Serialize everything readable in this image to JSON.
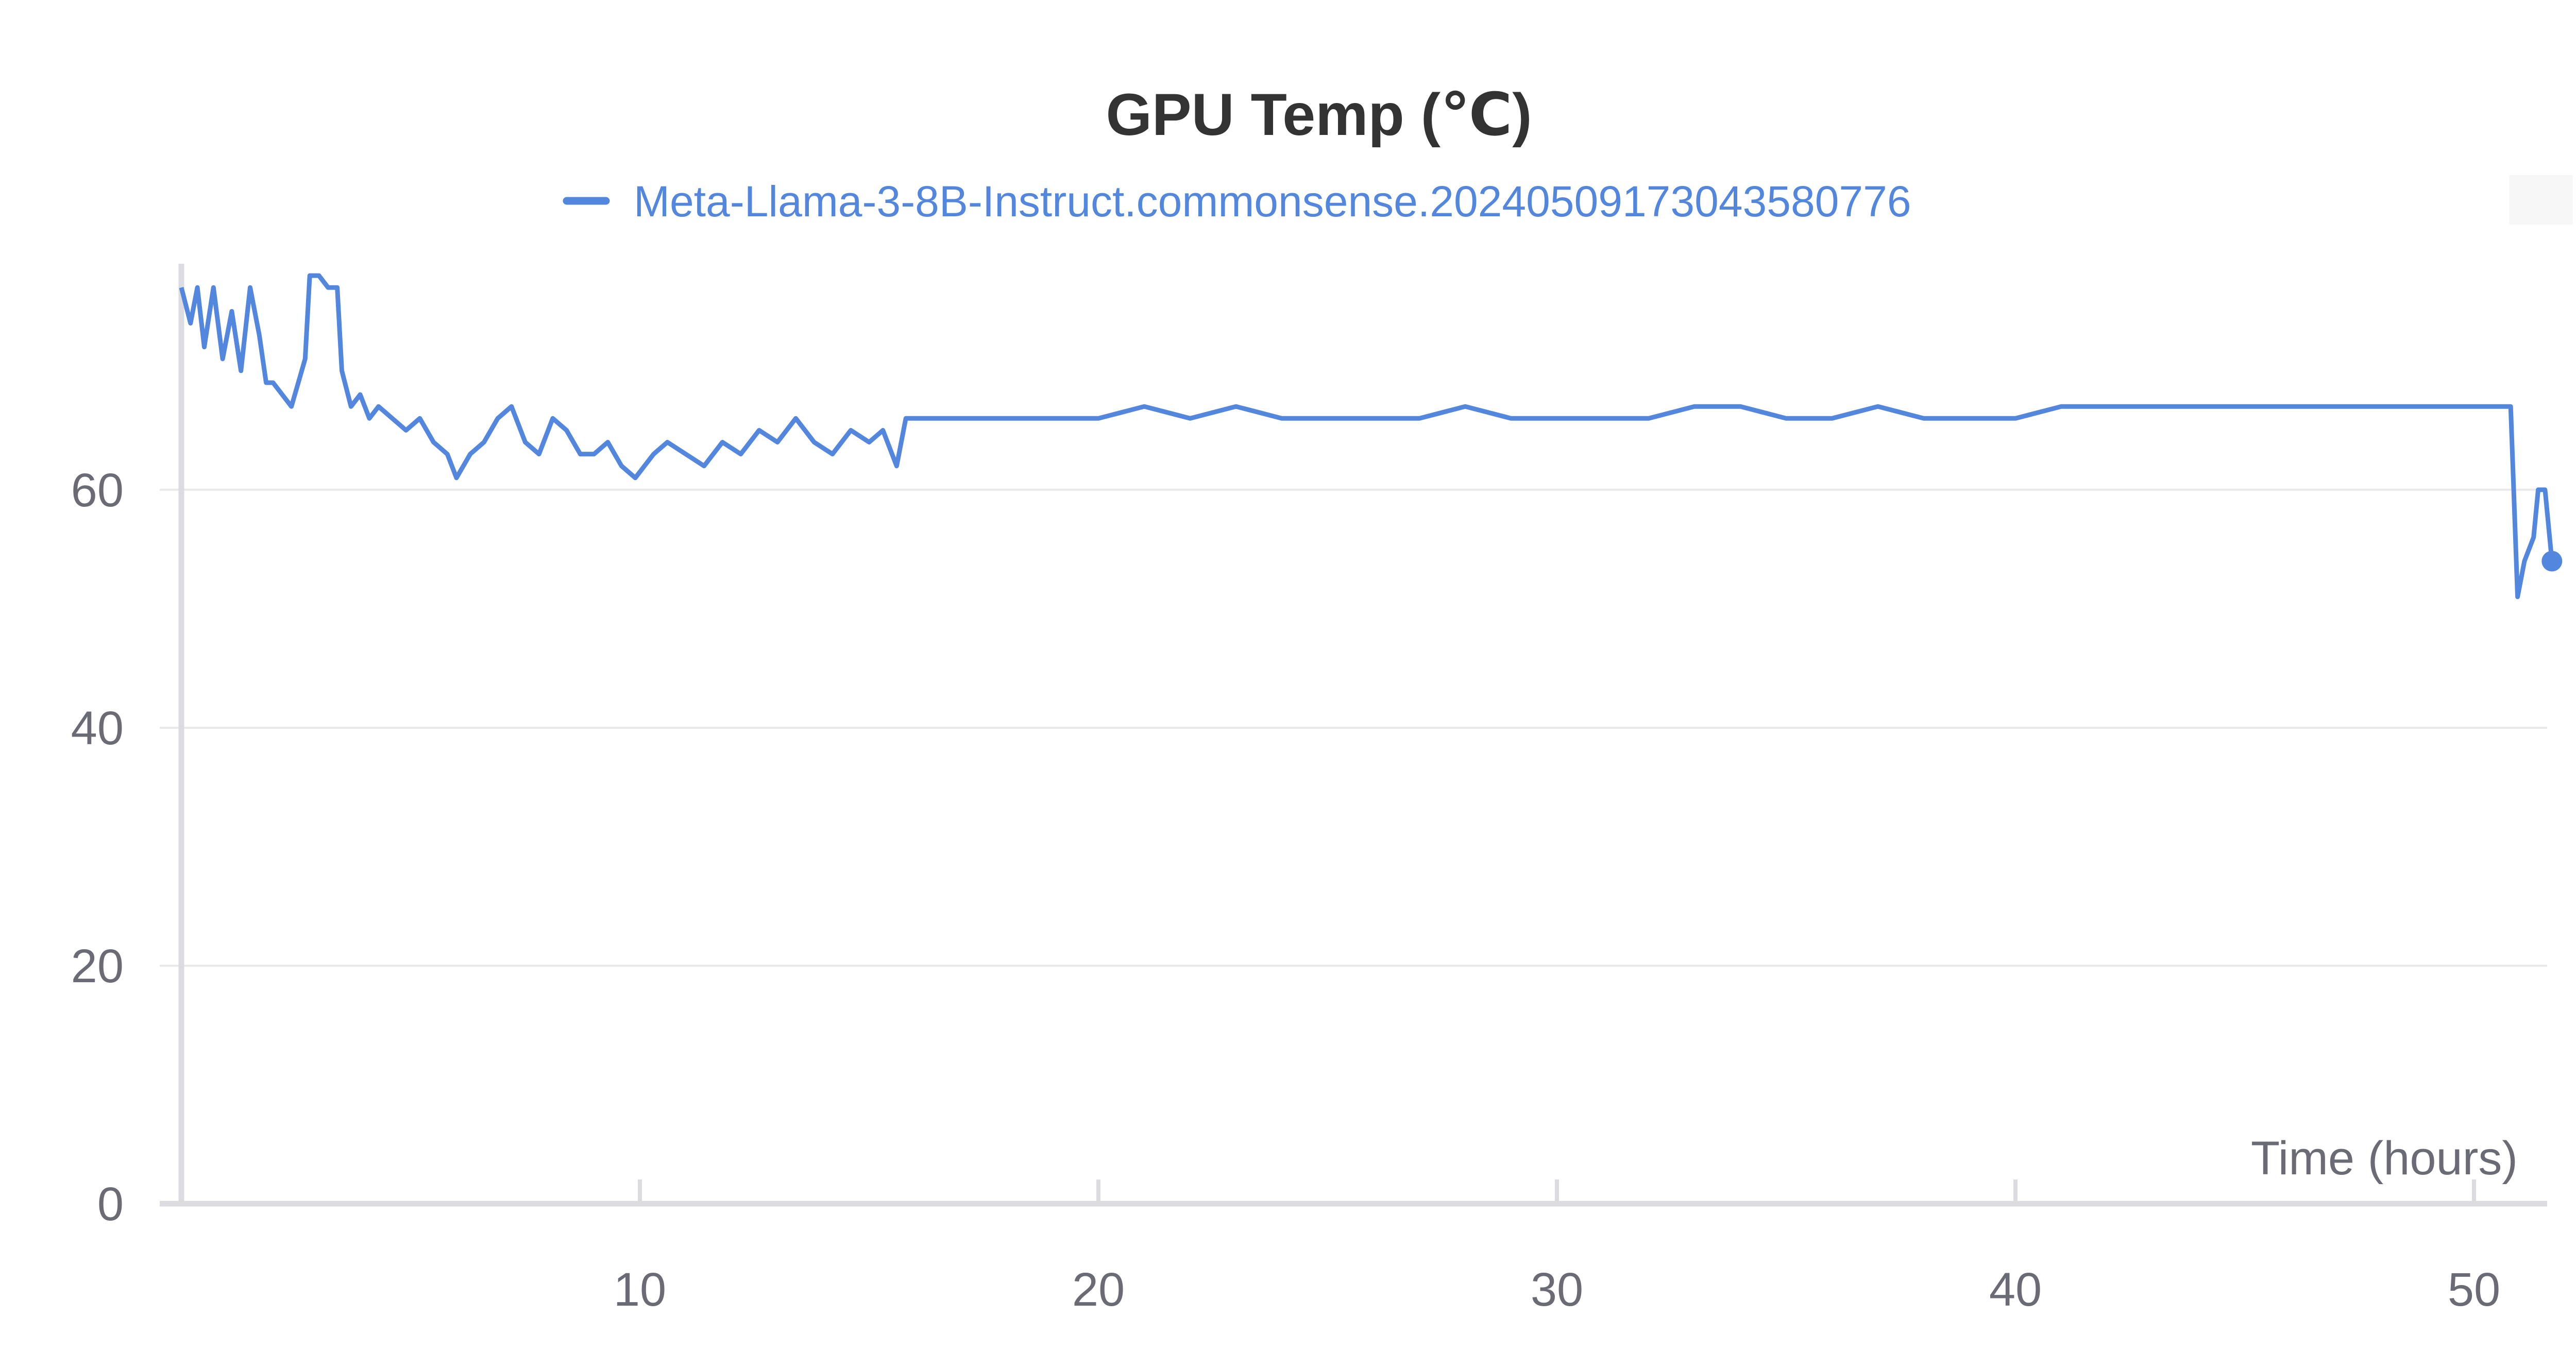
{
  "chart_data": {
    "type": "line",
    "title": "GPU Temp (℃)",
    "xlabel": "Time (hours)",
    "ylabel": "",
    "xlim": [
      0,
      51.7
    ],
    "ylim": [
      0,
      79
    ],
    "x_ticks": [
      10,
      20,
      30,
      40,
      50
    ],
    "y_ticks": [
      0,
      20,
      40,
      60
    ],
    "legend_position": "top-center",
    "grid": true,
    "series": [
      {
        "name": "Meta-Llama-3-8B-Instruct.commonsense.20240509173043580776",
        "color": "#5387dd",
        "points": [
          [
            0.0,
            77
          ],
          [
            0.2,
            74
          ],
          [
            0.35,
            77
          ],
          [
            0.5,
            72
          ],
          [
            0.7,
            77
          ],
          [
            0.9,
            71
          ],
          [
            1.1,
            75
          ],
          [
            1.3,
            70
          ],
          [
            1.5,
            77
          ],
          [
            1.7,
            73
          ],
          [
            1.85,
            69
          ],
          [
            2.0,
            69
          ],
          [
            2.2,
            68
          ],
          [
            2.4,
            67
          ],
          [
            2.55,
            69
          ],
          [
            2.7,
            71
          ],
          [
            2.8,
            78
          ],
          [
            3.0,
            78
          ],
          [
            3.2,
            77
          ],
          [
            3.4,
            77
          ],
          [
            3.5,
            70
          ],
          [
            3.7,
            67
          ],
          [
            3.9,
            68
          ],
          [
            4.1,
            66
          ],
          [
            4.3,
            67
          ],
          [
            4.6,
            66
          ],
          [
            4.9,
            65
          ],
          [
            5.2,
            66
          ],
          [
            5.5,
            64
          ],
          [
            5.8,
            63
          ],
          [
            6.0,
            61
          ],
          [
            6.3,
            63
          ],
          [
            6.6,
            64
          ],
          [
            6.9,
            66
          ],
          [
            7.2,
            67
          ],
          [
            7.5,
            64
          ],
          [
            7.8,
            63
          ],
          [
            8.1,
            66
          ],
          [
            8.4,
            65
          ],
          [
            8.7,
            63
          ],
          [
            9.0,
            63
          ],
          [
            9.3,
            64
          ],
          [
            9.6,
            62
          ],
          [
            9.9,
            61
          ],
          [
            10.3,
            63
          ],
          [
            10.6,
            64
          ],
          [
            11.0,
            63
          ],
          [
            11.4,
            62
          ],
          [
            11.8,
            64
          ],
          [
            12.2,
            63
          ],
          [
            12.6,
            65
          ],
          [
            13.0,
            64
          ],
          [
            13.4,
            66
          ],
          [
            13.8,
            64
          ],
          [
            14.2,
            63
          ],
          [
            14.6,
            65
          ],
          [
            15.0,
            64
          ],
          [
            15.3,
            65
          ],
          [
            15.6,
            62
          ],
          [
            15.8,
            66
          ],
          [
            16.2,
            66
          ],
          [
            16.8,
            66
          ],
          [
            17.5,
            66
          ],
          [
            18.2,
            66
          ],
          [
            19.0,
            66
          ],
          [
            20.0,
            66
          ],
          [
            21.0,
            67
          ],
          [
            22.0,
            66
          ],
          [
            23.0,
            67
          ],
          [
            24.0,
            66
          ],
          [
            25.0,
            66
          ],
          [
            26.0,
            66
          ],
          [
            27.0,
            66
          ],
          [
            28.0,
            67
          ],
          [
            29.0,
            66
          ],
          [
            30.0,
            66
          ],
          [
            31.0,
            66
          ],
          [
            32.0,
            66
          ],
          [
            33.0,
            67
          ],
          [
            34.0,
            67
          ],
          [
            35.0,
            66
          ],
          [
            36.0,
            66
          ],
          [
            37.0,
            67
          ],
          [
            38.0,
            66
          ],
          [
            39.0,
            66
          ],
          [
            40.0,
            66
          ],
          [
            41.0,
            67
          ],
          [
            42.0,
            67
          ],
          [
            43.0,
            67
          ],
          [
            44.0,
            67
          ],
          [
            45.0,
            67
          ],
          [
            46.0,
            67
          ],
          [
            47.0,
            67
          ],
          [
            48.0,
            67
          ],
          [
            49.0,
            67
          ],
          [
            50.0,
            67
          ],
          [
            50.5,
            67
          ],
          [
            50.8,
            67
          ],
          [
            50.95,
            51
          ],
          [
            51.1,
            54
          ],
          [
            51.3,
            56
          ],
          [
            51.4,
            60
          ],
          [
            51.55,
            60
          ],
          [
            51.7,
            54
          ]
        ]
      }
    ]
  }
}
